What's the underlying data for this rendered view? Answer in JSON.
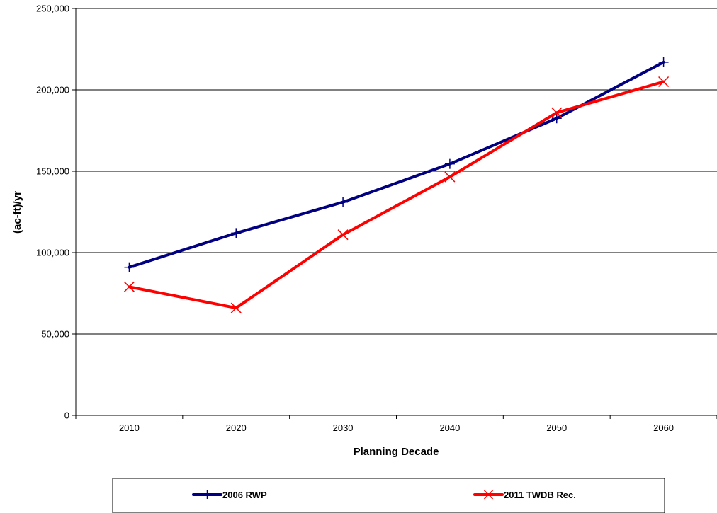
{
  "chart_data": {
    "type": "line",
    "title": "",
    "xlabel": "Planning Decade",
    "ylabel": "(ac-ft)/yr",
    "categories": [
      "2010",
      "2020",
      "2030",
      "2040",
      "2050",
      "2060"
    ],
    "ylim": [
      0,
      250000
    ],
    "y_ticks": [
      "0",
      "50,000",
      "100,000",
      "150,000",
      "200,000",
      "250,000"
    ],
    "y_tick_values": [
      0,
      50000,
      100000,
      150000,
      200000,
      250000
    ],
    "grid": true,
    "legend_position": "bottom",
    "series": [
      {
        "name": "2006 RWP",
        "color": "#000080",
        "marker": "plus",
        "values": [
          91000,
          112000,
          131000,
          154500,
          182500,
          217000
        ]
      },
      {
        "name": "2011 TWDB Rec.",
        "color": "#ff0000",
        "marker": "x",
        "values": [
          79000,
          66000,
          111000,
          146500,
          186000,
          205000
        ]
      }
    ]
  }
}
